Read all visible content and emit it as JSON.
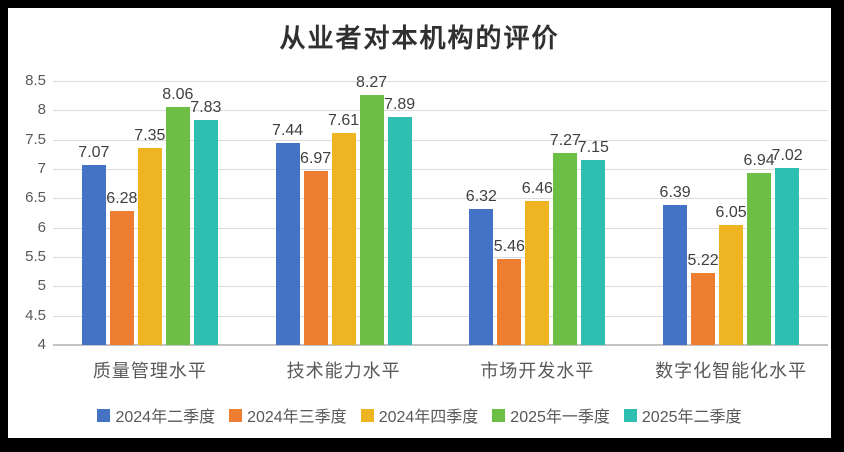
{
  "chart_data": {
    "type": "bar",
    "title": "从业者对本机构的评价",
    "categories": [
      "质量管理水平",
      "技术能力水平",
      "市场开发水平",
      "数字化智能化水平"
    ],
    "series": [
      {
        "name": "2024年二季度",
        "color": "#4472C4",
        "values": [
          7.07,
          7.44,
          6.32,
          6.39
        ]
      },
      {
        "name": "2024年三季度",
        "color": "#ED7D31",
        "values": [
          6.28,
          6.97,
          5.46,
          5.22
        ]
      },
      {
        "name": "2024年四季度",
        "color": "#EEB421",
        "values": [
          7.35,
          7.61,
          6.46,
          6.05
        ]
      },
      {
        "name": "2025年一季度",
        "color": "#6DBE45",
        "values": [
          8.06,
          8.27,
          7.27,
          6.94
        ]
      },
      {
        "name": "2025年二季度",
        "color": "#2FBFB0",
        "values": [
          7.83,
          7.89,
          7.15,
          7.02
        ]
      }
    ],
    "ylim": [
      4,
      8.5
    ],
    "y_tick_step": 0.5,
    "y_tick_labels": [
      "4",
      "4.5",
      "5",
      "5.5",
      "6",
      "6.5",
      "7",
      "7.5",
      "8",
      "8.5"
    ],
    "data_labels_decimals": 2,
    "grid": true,
    "legend_position": "bottom",
    "colors": {
      "background": "#ffffff",
      "frame": "#000000",
      "gridline": "#dcdcdc",
      "axis_line": "#c3c3c3",
      "tick_text": "#595959",
      "label_text": "#3f3f3f",
      "title_text": "#303030"
    }
  }
}
